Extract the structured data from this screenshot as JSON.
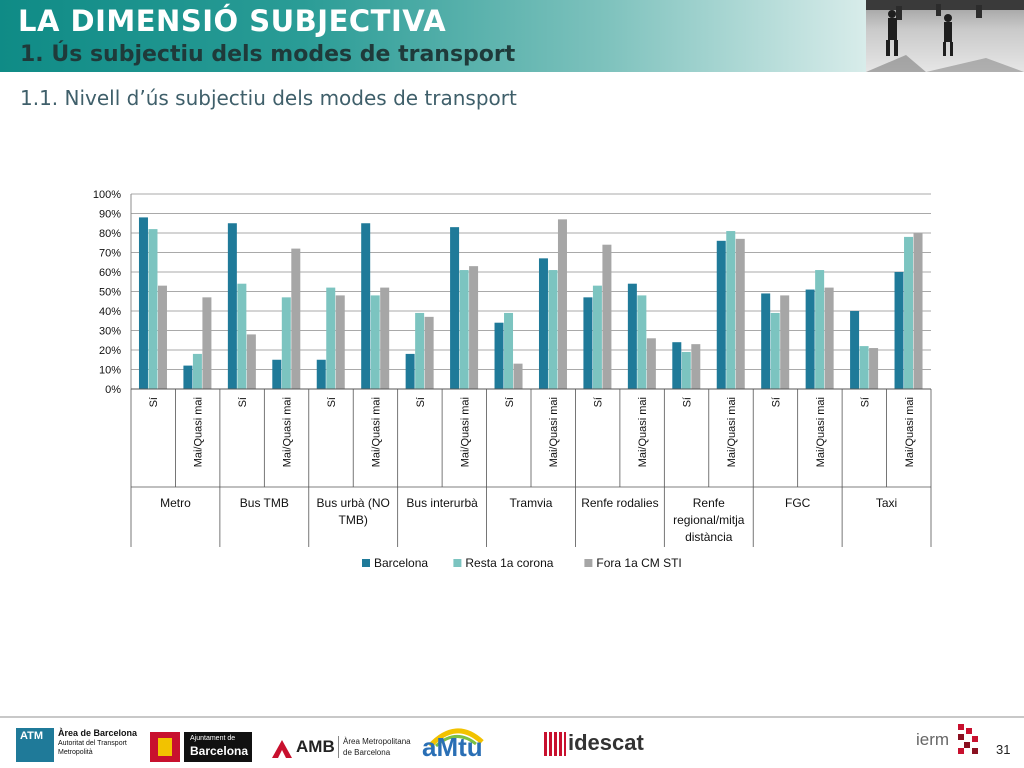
{
  "header": {
    "title": "LA DIMENSIÓ SUBJECTIVA",
    "subtitle": "1. Ús subjectiu dels modes de transport"
  },
  "section_title": "1.1. Nivell d’ús subjectiu dels modes de transport",
  "colors": {
    "barcelona": "#1f7a99",
    "resta": "#7cc4c0",
    "fora": "#a6a6a6",
    "header": "#0f8b86"
  },
  "chart_data": {
    "type": "bar",
    "title": "",
    "groups": [
      "Metro",
      "Bus TMB",
      "Bus urbà  (NO TMB)",
      "Bus interurbà",
      "Tramvia",
      "Renfe rodalies",
      "Renfe regional/mitja distància",
      "FGC",
      "Taxi"
    ],
    "subcategories": [
      "Sí",
      "Mai/Quasi mai"
    ],
    "categories": [
      "Sí",
      "Mai/Quasi mai",
      "Sí",
      "Mai/Quasi mai",
      "Sí",
      "Mai/Quasi mai",
      "Sí",
      "Mai/Quasi mai",
      "Sí",
      "Mai/Quasi mai",
      "Sí",
      "Mai/Quasi mai",
      "Sí",
      "Mai/Quasi mai",
      "Sí",
      "Mai/Quasi mai",
      "Sí",
      "Mai/Quasi mai"
    ],
    "series": [
      {
        "name": "Barcelona",
        "values": [
          88,
          12,
          85,
          15,
          15,
          85,
          18,
          83,
          34,
          67,
          47,
          54,
          24,
          76,
          49,
          51,
          40,
          60
        ]
      },
      {
        "name": "Resta 1a corona",
        "values": [
          82,
          18,
          54,
          47,
          52,
          48,
          39,
          61,
          39,
          61,
          53,
          48,
          19,
          81,
          39,
          61,
          22,
          78
        ]
      },
      {
        "name": "Fora 1a CM STI",
        "values": [
          53,
          47,
          28,
          72,
          48,
          52,
          37,
          63,
          13,
          87,
          74,
          26,
          23,
          77,
          48,
          52,
          21,
          80
        ]
      }
    ],
    "yticks": [
      "0%",
      "10%",
      "20%",
      "30%",
      "40%",
      "50%",
      "60%",
      "70%",
      "80%",
      "90%",
      "100%"
    ],
    "ylim": [
      0,
      100
    ],
    "grid": true,
    "legend": "bottom"
  },
  "footer": {
    "logos": {
      "atm": "ATM",
      "atm_line1": "Àrea de Barcelona",
      "atm_line2": "Autoritat del Transport",
      "atm_line3": "Metropolità",
      "ajuntament_small": "Ajuntament de",
      "ajuntament": "Barcelona",
      "amb": "AMB",
      "amb_line1": "Àrea Metropolitana",
      "amb_line2": "de Barcelona",
      "amtu": "aMtu",
      "idescat": "idescat",
      "ierm": "ierm"
    },
    "page_number": "31"
  }
}
